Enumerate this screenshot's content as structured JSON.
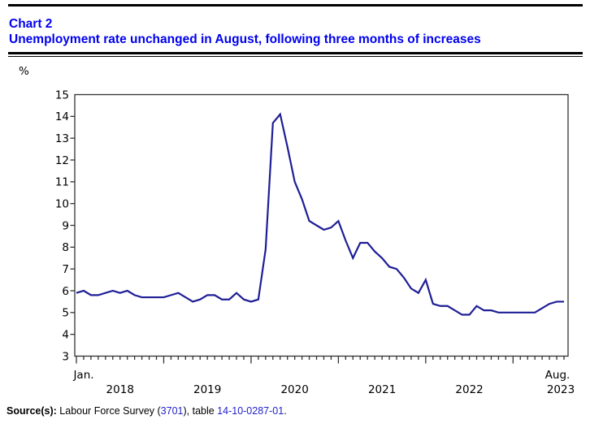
{
  "header": {
    "chart_label": "Chart 2",
    "title": "Unemployment rate unchanged in August, following three months of increases"
  },
  "chart_data": {
    "type": "line",
    "title": "Chart 2",
    "subtitle": "Unemployment rate unchanged in August, following three months of increases",
    "y_unit": "%",
    "ylim": [
      3,
      15
    ],
    "y_ticks": [
      3,
      4,
      5,
      6,
      7,
      8,
      9,
      10,
      11,
      12,
      13,
      14,
      15
    ],
    "grid": false,
    "legend": false,
    "x_domain": {
      "start": "January 2018",
      "end": "August 2023",
      "frequency": "monthly",
      "n_points": 68
    },
    "x_axis_labels": {
      "first_month": "Jan.",
      "last_month": "Aug.",
      "years": [
        "2018",
        "2019",
        "2020",
        "2021",
        "2022",
        "2023"
      ]
    },
    "series": [
      {
        "name": "Unemployment rate (%)",
        "color": "#1e1e96",
        "values": [
          5.9,
          6.0,
          5.8,
          5.8,
          5.9,
          6.0,
          5.9,
          6.0,
          5.8,
          5.7,
          5.7,
          5.7,
          5.7,
          5.8,
          5.9,
          5.7,
          5.5,
          5.6,
          5.8,
          5.8,
          5.6,
          5.6,
          5.9,
          5.6,
          5.5,
          5.6,
          7.9,
          13.7,
          14.1,
          12.6,
          11.0,
          10.2,
          9.2,
          9.0,
          8.8,
          8.9,
          9.2,
          8.3,
          7.5,
          8.2,
          8.2,
          7.8,
          7.5,
          7.1,
          7.0,
          6.6,
          6.1,
          5.9,
          6.5,
          5.4,
          5.3,
          5.3,
          5.1,
          4.9,
          4.9,
          5.3,
          5.1,
          5.1,
          5.0,
          5.0,
          5.0,
          5.0,
          5.0,
          5.0,
          5.2,
          5.4,
          5.5,
          5.5
        ]
      }
    ]
  },
  "footer": {
    "label": "Source(s):",
    "text_before_survey_link": " Labour Force Survey (",
    "survey_link": "3701",
    "text_before_table_link": "), table ",
    "table_link": "14-10-0287-01",
    "text_end": "."
  },
  "colors": {
    "title_blue": "#0000ee",
    "link_blue": "#2222cc",
    "line_navy": "#1e1e96",
    "axis": "#333333"
  }
}
